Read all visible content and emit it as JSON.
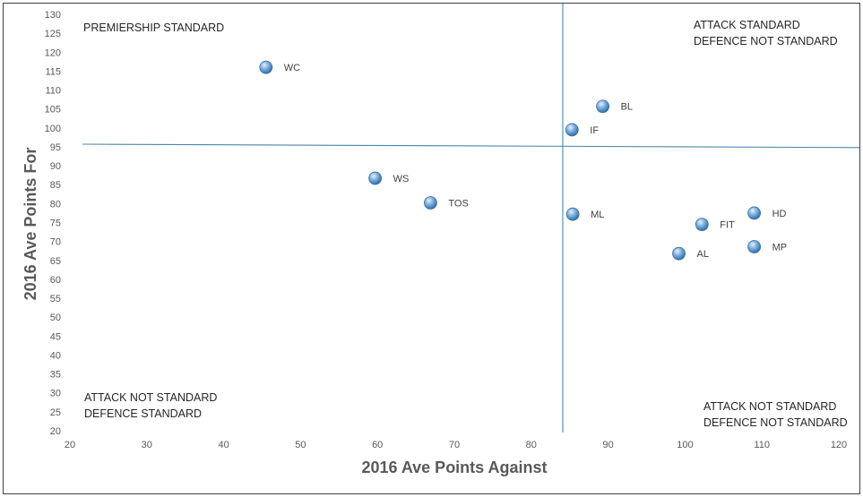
{
  "chart_data": {
    "type": "scatter",
    "title": "",
    "xlabel": "2016 Ave Points Against",
    "ylabel": "2016 Ave Points For",
    "xlim": [
      20,
      120
    ],
    "ylim": [
      20,
      130
    ],
    "xticks": [
      20,
      30,
      40,
      50,
      60,
      70,
      80,
      90,
      100,
      110,
      120
    ],
    "yticks": [
      20,
      25,
      30,
      35,
      40,
      45,
      50,
      55,
      60,
      65,
      70,
      75,
      80,
      85,
      90,
      95,
      100,
      105,
      110,
      115,
      120,
      125,
      130
    ],
    "grid": false,
    "marker_color": "#5b9bd5",
    "points": [
      {
        "label": "WC",
        "x": 45.5,
        "y": 116
      },
      {
        "label": "BL",
        "x": 89.3,
        "y": 105.7
      },
      {
        "label": "IF",
        "x": 85.3,
        "y": 99.5
      },
      {
        "label": "WS",
        "x": 59.7,
        "y": 86.7
      },
      {
        "label": "TOS",
        "x": 66.9,
        "y": 80.2
      },
      {
        "label": "ML",
        "x": 85.4,
        "y": 77.2
      },
      {
        "label": "HD",
        "x": 109,
        "y": 77.5
      },
      {
        "label": "FIT",
        "x": 102.2,
        "y": 74.5
      },
      {
        "label": "MP",
        "x": 109,
        "y": 68.6
      },
      {
        "label": "AL",
        "x": 99.2,
        "y": 66.8
      }
    ],
    "reference_lines": {
      "vertical_x": [
        84.1,
        84.1
      ],
      "horizontal_y": [
        95.7,
        94.8
      ],
      "color": "#4a86a8"
    },
    "quadrant_labels": {
      "top_left": [
        "PREMIERSHIP STANDARD"
      ],
      "top_right": [
        "ATTACK STANDARD",
        "DEFENCE NOT STANDARD"
      ],
      "bottom_left": [
        "ATTACK NOT STANDARD",
        "DEFENCE STANDARD"
      ],
      "bottom_right": [
        "ATTACK NOT STANDARD",
        "DEFENCE NOT STANDARD"
      ]
    }
  }
}
